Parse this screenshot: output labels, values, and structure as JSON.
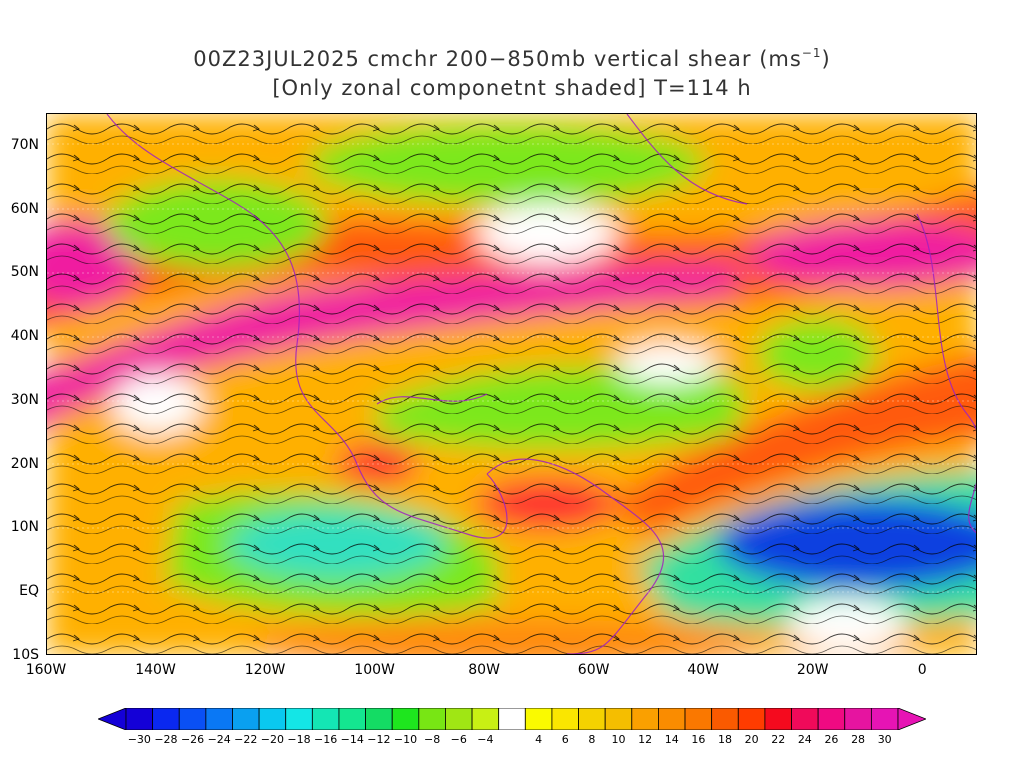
{
  "title": {
    "line1": "00Z23JUL2025 cmchr 200−850mb vertical shear (ms",
    "line1_sup": "−1",
    "line1_end": ")",
    "line2": "[Only zonal componetnt shaded] T=114 h"
  },
  "map": {
    "lat_labels": [
      "70N",
      "60N",
      "50N",
      "40N",
      "30N",
      "20N",
      "10N",
      "EQ",
      "10S"
    ],
    "lon_labels": [
      "160W",
      "140W",
      "120W",
      "100W",
      "80W",
      "60W",
      "40W",
      "20W",
      "0"
    ],
    "lat_values": [
      70,
      60,
      50,
      40,
      30,
      20,
      10,
      0,
      -10
    ],
    "lon_values": [
      -160,
      -140,
      -120,
      -100,
      -80,
      -60,
      -40,
      -20,
      0
    ],
    "lat_range": [
      -10,
      75
    ],
    "lon_range": [
      -160,
      10
    ],
    "field_colors": {
      "strong_positive": "#f01fa0",
      "positive": "#ff6a10",
      "weak_positive": "#ffb000",
      "neutral": "#ffffff",
      "weak_negative": "#7ce81a",
      "negative": "#30e0c0",
      "strong_negative": "#0a40e0"
    }
  },
  "colorbar": {
    "labels": [
      "−30",
      "−28",
      "−26",
      "−24",
      "−22",
      "−20",
      "−18",
      "−16",
      "−14",
      "−12",
      "−10",
      "−8",
      "−6",
      "−4",
      "4",
      "6",
      "8",
      "10",
      "12",
      "14",
      "16",
      "18",
      "20",
      "22",
      "24",
      "26",
      "28",
      "30"
    ],
    "colors": [
      "#1400d7",
      "#0a28f0",
      "#0a50f5",
      "#0a78f5",
      "#0aa0f0",
      "#0ac8f0",
      "#14e6e6",
      "#14e6b4",
      "#14e690",
      "#14dc64",
      "#1ee61e",
      "#78e614",
      "#a0e614",
      "#c8f014",
      "#ffffff",
      "#fafa00",
      "#fae600",
      "#f5d200",
      "#f5be00",
      "#faa000",
      "#fa8c00",
      "#fa7800",
      "#fa5a00",
      "#ff3c00",
      "#f50a1e",
      "#f00a5a",
      "#f00a82",
      "#e614a0",
      "#e614b4"
    ],
    "end_left_color": "#1400d7",
    "end_right_color": "#e614b4"
  }
}
